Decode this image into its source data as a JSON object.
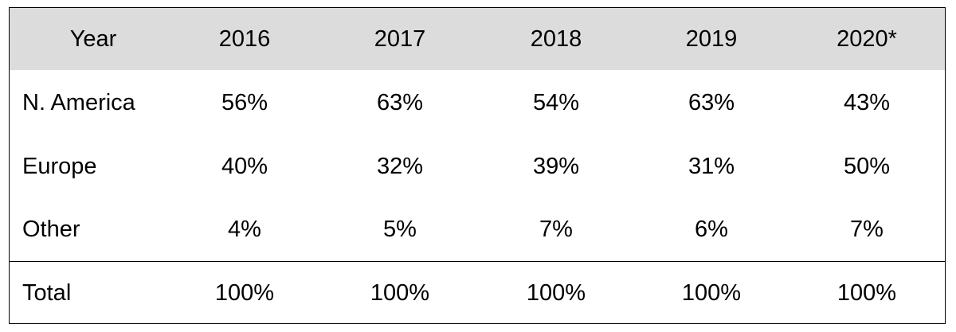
{
  "chart_data": {
    "type": "table",
    "columns": [
      "Year",
      "2016",
      "2017",
      "2018",
      "2019",
      "2020*"
    ],
    "rows": [
      {
        "label": "N. America",
        "values": [
          "56%",
          "63%",
          "54%",
          "63%",
          "43%"
        ]
      },
      {
        "label": "Europe",
        "values": [
          "40%",
          "32%",
          "39%",
          "31%",
          "50%"
        ]
      },
      {
        "label": "Other",
        "values": [
          "4%",
          "5%",
          "7%",
          "6%",
          "7%"
        ]
      },
      {
        "label": "Total",
        "values": [
          "100%",
          "100%",
          "100%",
          "100%",
          "100%"
        ]
      }
    ],
    "header_background": "#dcdcdc",
    "border_color": "#000000"
  }
}
